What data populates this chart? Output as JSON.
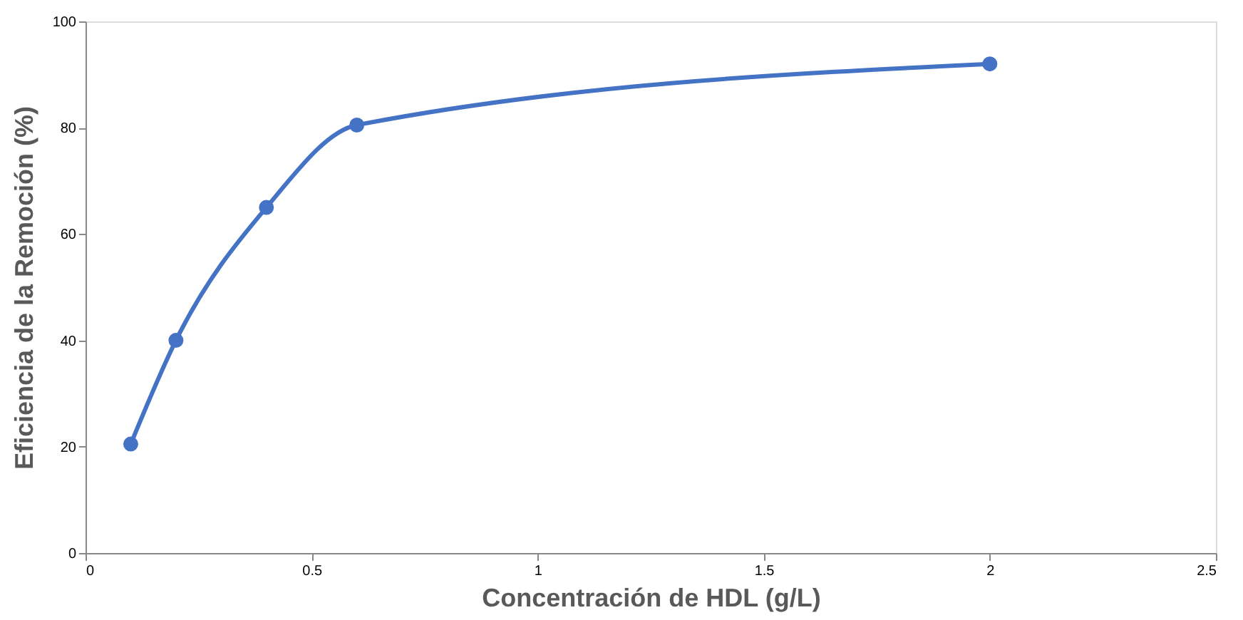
{
  "chart_data": {
    "type": "line",
    "xlabel": "Concentración de HDL (g/L)",
    "ylabel": "Eficiencia de la Remoción (%)",
    "x": [
      0.1,
      0.2,
      0.4,
      0.6,
      2
    ],
    "series": [
      {
        "color": "#4472c4",
        "values": [
          20.5,
          40,
          65,
          80.5,
          92
        ]
      }
    ],
    "xlim": [
      0,
      2.5
    ],
    "xticks": [
      0,
      0.5,
      1,
      1.5,
      2,
      2.5
    ],
    "ylim": [
      0,
      100
    ],
    "yticks": [
      0,
      20,
      40,
      60,
      80,
      100
    ],
    "grid": false,
    "marker": "circle",
    "line_style": "solid"
  }
}
